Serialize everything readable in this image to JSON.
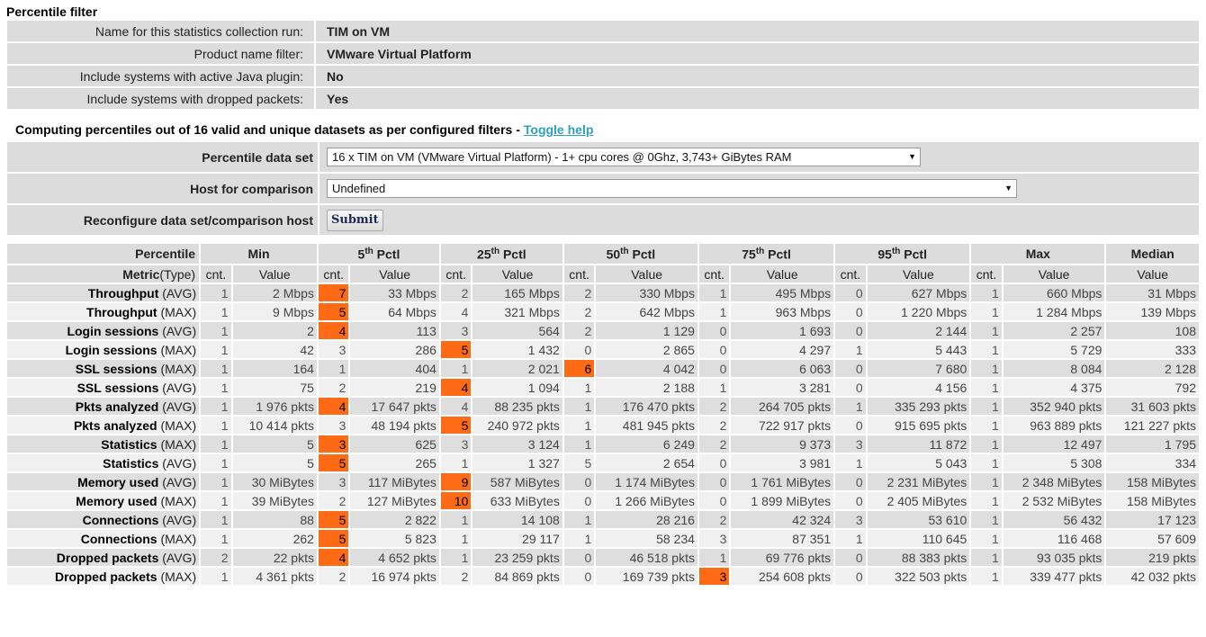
{
  "page": {
    "section_title": "Percentile filter",
    "filters": [
      {
        "label": "Name for this statistics collection run:",
        "value": "TIM on VM"
      },
      {
        "label": "Product name filter:",
        "value": "VMware Virtual Platform"
      },
      {
        "label": "Include systems with active Java plugin:",
        "value": "No"
      },
      {
        "label": "Include systems with dropped packets:",
        "value": "Yes"
      }
    ],
    "computing_text": "Computing percentiles out of 16 valid and unique datasets as per configured filters -",
    "toggle_help": "Toggle help"
  },
  "config": {
    "dataset_label": "Percentile data set",
    "dataset_value": "16 x TIM on VM (VMware Virtual Platform) - 1+ cpu cores @ 0Ghz, 3,743+ GiBytes RAM",
    "host_label": "Host for comparison",
    "host_value": "Undefined",
    "reconfigure_label": "Reconfigure data set/comparison host",
    "submit_label": "Submit",
    "dropdown_arrow": "▼"
  },
  "table": {
    "header_percentile": "Percentile",
    "groups": [
      {
        "label": "Min",
        "sup": ""
      },
      {
        "label": "5",
        "sup": "th",
        "suffix": " Pctl"
      },
      {
        "label": "25",
        "sup": "th",
        "suffix": " Pctl"
      },
      {
        "label": "50",
        "sup": "th",
        "suffix": " Pctl"
      },
      {
        "label": "75",
        "sup": "th",
        "suffix": " Pctl"
      },
      {
        "label": "95",
        "sup": "th",
        "suffix": " Pctl"
      },
      {
        "label": "Max",
        "sup": ""
      }
    ],
    "median_label": "Median",
    "metric_label": "Metric",
    "type_label": "(Type)",
    "cnt_label": "cnt.",
    "value_label": "Value",
    "highlight_color": "#ff6a14",
    "rows": [
      {
        "metric": "Throughput",
        "type": "(AVG)",
        "cells": [
          [
            "1",
            "2 Mbps"
          ],
          [
            "7",
            "33 Mbps"
          ],
          [
            "2",
            "165 Mbps"
          ],
          [
            "2",
            "330 Mbps"
          ],
          [
            "1",
            "495 Mbps"
          ],
          [
            "0",
            "627 Mbps"
          ],
          [
            "1",
            "660 Mbps"
          ]
        ],
        "median": "31 Mbps",
        "hl": 1
      },
      {
        "metric": "Throughput",
        "type": "(MAX)",
        "cells": [
          [
            "1",
            "9 Mbps"
          ],
          [
            "5",
            "64 Mbps"
          ],
          [
            "4",
            "321 Mbps"
          ],
          [
            "2",
            "642 Mbps"
          ],
          [
            "1",
            "963 Mbps"
          ],
          [
            "0",
            "1 220 Mbps"
          ],
          [
            "1",
            "1 284 Mbps"
          ]
        ],
        "median": "139 Mbps",
        "hl": 1
      },
      {
        "metric": "Login sessions",
        "type": "(AVG)",
        "cells": [
          [
            "1",
            "2"
          ],
          [
            "4",
            "113"
          ],
          [
            "3",
            "564"
          ],
          [
            "2",
            "1 129"
          ],
          [
            "0",
            "1 693"
          ],
          [
            "0",
            "2 144"
          ],
          [
            "1",
            "2 257"
          ]
        ],
        "median": "108",
        "hl": 1
      },
      {
        "metric": "Login sessions",
        "type": "(MAX)",
        "cells": [
          [
            "1",
            "42"
          ],
          [
            "3",
            "286"
          ],
          [
            "5",
            "1 432"
          ],
          [
            "0",
            "2 865"
          ],
          [
            "0",
            "4 297"
          ],
          [
            "1",
            "5 443"
          ],
          [
            "1",
            "5 729"
          ]
        ],
        "median": "333",
        "hl": 2
      },
      {
        "metric": "SSL sessions",
        "type": "(MAX)",
        "cells": [
          [
            "1",
            "164"
          ],
          [
            "1",
            "404"
          ],
          [
            "1",
            "2 021"
          ],
          [
            "6",
            "4 042"
          ],
          [
            "0",
            "6 063"
          ],
          [
            "0",
            "7 680"
          ],
          [
            "1",
            "8 084"
          ]
        ],
        "median": "2 128",
        "hl": 3
      },
      {
        "metric": "SSL sessions",
        "type": "(AVG)",
        "cells": [
          [
            "1",
            "75"
          ],
          [
            "2",
            "219"
          ],
          [
            "4",
            "1 094"
          ],
          [
            "1",
            "2 188"
          ],
          [
            "1",
            "3 281"
          ],
          [
            "0",
            "4 156"
          ],
          [
            "1",
            "4 375"
          ]
        ],
        "median": "792",
        "hl": 2
      },
      {
        "metric": "Pkts analyzed",
        "type": "(AVG)",
        "cells": [
          [
            "1",
            "1 976 pkts"
          ],
          [
            "4",
            "17 647 pkts"
          ],
          [
            "4",
            "88 235 pkts"
          ],
          [
            "1",
            "176 470 pkts"
          ],
          [
            "2",
            "264 705 pkts"
          ],
          [
            "1",
            "335 293 pkts"
          ],
          [
            "1",
            "352 940 pkts"
          ]
        ],
        "median": "31 603 pkts",
        "hl": 1
      },
      {
        "metric": "Pkts analyzed",
        "type": "(MAX)",
        "cells": [
          [
            "1",
            "10 414 pkts"
          ],
          [
            "3",
            "48 194 pkts"
          ],
          [
            "5",
            "240 972 pkts"
          ],
          [
            "1",
            "481 945 pkts"
          ],
          [
            "2",
            "722 917 pkts"
          ],
          [
            "0",
            "915 695 pkts"
          ],
          [
            "1",
            "963 889 pkts"
          ]
        ],
        "median": "121 227 pkts",
        "hl": 2
      },
      {
        "metric": "Statistics",
        "type": "(MAX)",
        "cells": [
          [
            "1",
            "5"
          ],
          [
            "3",
            "625"
          ],
          [
            "3",
            "3 124"
          ],
          [
            "1",
            "6 249"
          ],
          [
            "2",
            "9 373"
          ],
          [
            "3",
            "11 872"
          ],
          [
            "1",
            "12 497"
          ]
        ],
        "median": "1 795",
        "hl": 1
      },
      {
        "metric": "Statistics",
        "type": "(AVG)",
        "cells": [
          [
            "1",
            "5"
          ],
          [
            "5",
            "265"
          ],
          [
            "1",
            "1 327"
          ],
          [
            "5",
            "2 654"
          ],
          [
            "0",
            "3 981"
          ],
          [
            "1",
            "5 043"
          ],
          [
            "1",
            "5 308"
          ]
        ],
        "median": "334",
        "hl": 1
      },
      {
        "metric": "Memory used",
        "type": "(AVG)",
        "cells": [
          [
            "1",
            "30 MiBytes"
          ],
          [
            "3",
            "117 MiBytes"
          ],
          [
            "9",
            "587 MiBytes"
          ],
          [
            "0",
            "1 174 MiBytes"
          ],
          [
            "0",
            "1 761 MiBytes"
          ],
          [
            "0",
            "2 231 MiBytes"
          ],
          [
            "1",
            "2 348 MiBytes"
          ]
        ],
        "median": "158 MiBytes",
        "hl": 2
      },
      {
        "metric": "Memory used",
        "type": "(MAX)",
        "cells": [
          [
            "1",
            "39 MiBytes"
          ],
          [
            "2",
            "127 MiBytes"
          ],
          [
            "10",
            "633 MiBytes"
          ],
          [
            "0",
            "1 266 MiBytes"
          ],
          [
            "0",
            "1 899 MiBytes"
          ],
          [
            "0",
            "2 405 MiBytes"
          ],
          [
            "1",
            "2 532 MiBytes"
          ]
        ],
        "median": "158 MiBytes",
        "hl": 2
      },
      {
        "metric": "Connections",
        "type": "(AVG)",
        "cells": [
          [
            "1",
            "88"
          ],
          [
            "5",
            "2 822"
          ],
          [
            "1",
            "14 108"
          ],
          [
            "1",
            "28 216"
          ],
          [
            "2",
            "42 324"
          ],
          [
            "3",
            "53 610"
          ],
          [
            "1",
            "56 432"
          ]
        ],
        "median": "17 123",
        "hl": 1
      },
      {
        "metric": "Connections",
        "type": "(MAX)",
        "cells": [
          [
            "1",
            "262"
          ],
          [
            "5",
            "5 823"
          ],
          [
            "1",
            "29 117"
          ],
          [
            "1",
            "58 234"
          ],
          [
            "3",
            "87 351"
          ],
          [
            "1",
            "110 645"
          ],
          [
            "1",
            "116 468"
          ]
        ],
        "median": "57 609",
        "hl": 1
      },
      {
        "metric": "Dropped packets",
        "type": "(AVG)",
        "cells": [
          [
            "2",
            "22 pkts"
          ],
          [
            "4",
            "4 652 pkts"
          ],
          [
            "1",
            "23 259 pkts"
          ],
          [
            "0",
            "46 518 pkts"
          ],
          [
            "1",
            "69 776 pkts"
          ],
          [
            "0",
            "88 383 pkts"
          ],
          [
            "1",
            "93 035 pkts"
          ]
        ],
        "median": "219 pkts",
        "hl": 1
      },
      {
        "metric": "Dropped packets",
        "type": "(MAX)",
        "cells": [
          [
            "1",
            "4 361 pkts"
          ],
          [
            "2",
            "16 974 pkts"
          ],
          [
            "2",
            "84 869 pkts"
          ],
          [
            "0",
            "169 739 pkts"
          ],
          [
            "3",
            "254 608 pkts"
          ],
          [
            "0",
            "322 503 pkts"
          ],
          [
            "1",
            "339 477 pkts"
          ]
        ],
        "median": "42 032 pkts",
        "hl": 4
      }
    ]
  }
}
